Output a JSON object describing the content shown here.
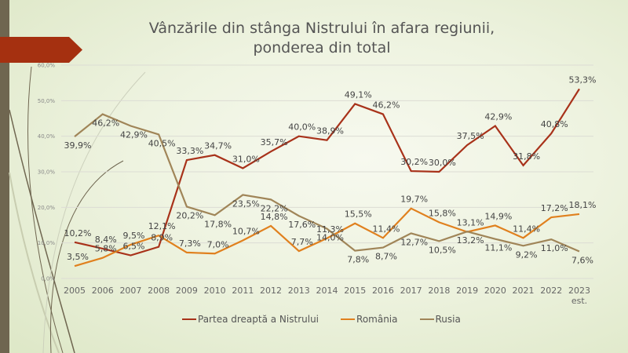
{
  "title_line1": "Vânzările din stânga Nistrului în afara regiunii,",
  "title_line2": "ponderea din total",
  "chart_data": {
    "type": "line",
    "title": "Vânzările din stânga Nistrului în afara regiunii, ponderea din total",
    "categories": [
      "2005",
      "2006",
      "2007",
      "2008",
      "2009",
      "2010",
      "2011",
      "2012",
      "2013",
      "2014",
      "2015",
      "2016",
      "2017",
      "2018",
      "2019",
      "2020",
      "2021",
      "2022",
      "2023 est."
    ],
    "y_ticks": [
      "0,0%",
      "10,0%",
      "20,0%",
      "30,0%",
      "40,0%",
      "50,0%",
      "60,0%"
    ],
    "ylim": [
      0,
      60
    ],
    "grid": true,
    "legend_position": "bottom",
    "series": [
      {
        "name": "Partea dreaptă a Nistrului",
        "color": "#a8321a",
        "values": [
          10.2,
          8.4,
          6.5,
          8.9,
          33.3,
          34.7,
          31.0,
          35.7,
          40.0,
          38.9,
          49.1,
          46.2,
          30.2,
          30.0,
          37.5,
          42.9,
          31.8,
          40.8,
          53.3
        ]
      },
      {
        "name": "România",
        "color": "#e0801e",
        "values": [
          3.5,
          5.8,
          9.5,
          12.1,
          7.3,
          7.0,
          10.7,
          14.8,
          7.7,
          11.3,
          15.5,
          11.4,
          19.7,
          15.8,
          13.1,
          14.9,
          11.4,
          17.2,
          18.1
        ]
      },
      {
        "name": "Rusia",
        "color": "#a08558",
        "values": [
          39.9,
          46.2,
          42.9,
          40.5,
          20.2,
          17.8,
          23.5,
          22.2,
          17.6,
          14.0,
          7.8,
          8.7,
          12.7,
          10.5,
          13.2,
          11.1,
          9.2,
          11.0,
          7.6
        ]
      }
    ]
  }
}
